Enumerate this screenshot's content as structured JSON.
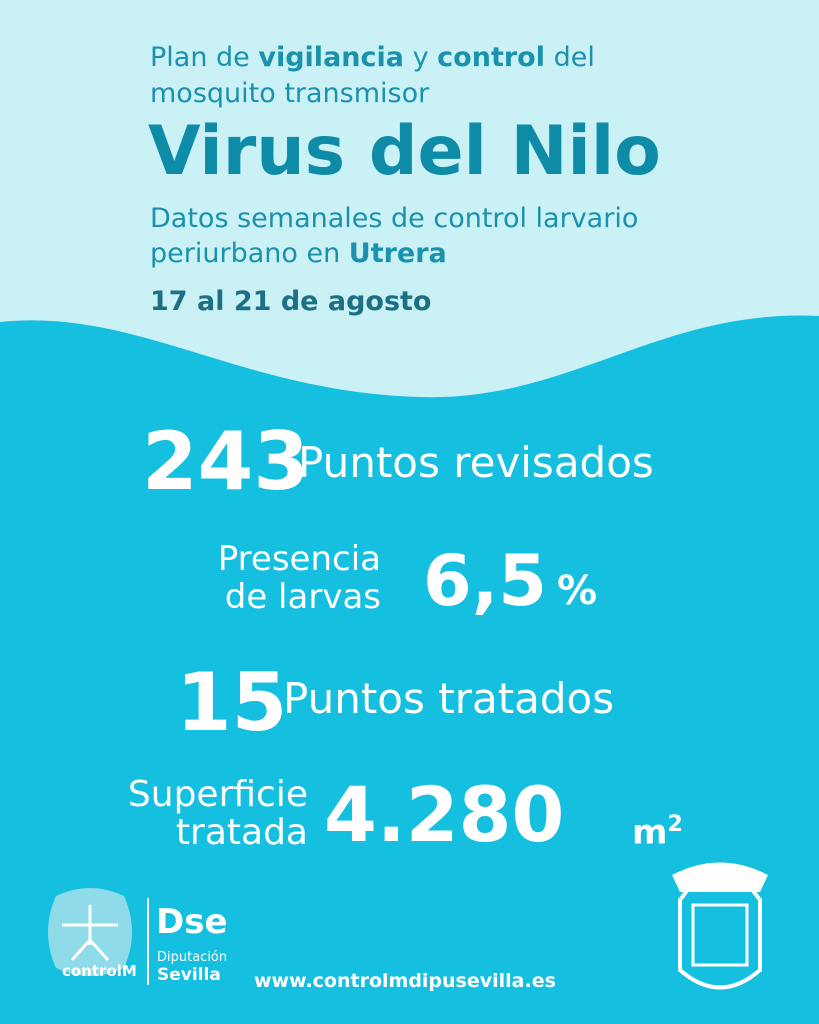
{
  "header": {
    "intro": [
      "Plan de",
      "vigilancia",
      "y",
      "control",
      "del"
    ],
    "subtitle": "mosquito transmisor",
    "title": "Virus del Nilo",
    "description": "Datos semanales de control larvario",
    "location_prefix": "periurbano en",
    "location": "Utrera",
    "dates": "17 al 21 de agosto"
  },
  "stats": {
    "checked": {
      "number": 243,
      "label": "Puntos revisados"
    },
    "larvae": {
      "label_line1": "Presencia",
      "label_line2": "de larvas",
      "number": "6,5",
      "unit": "%"
    },
    "treated": {
      "number": 15,
      "label": "Puntos tratados"
    },
    "area": {
      "label_line1": "Superficie",
      "label_line2": "tratada",
      "number": "4.280",
      "unit": "m",
      "exponent": "2"
    }
  },
  "footer": {
    "logo1": "controlM",
    "logo2_mark": "Dse",
    "logo2_line1": "Diputación",
    "logo2_line2": "Sevilla",
    "url": "www.controlmdipusevilla.es"
  }
}
